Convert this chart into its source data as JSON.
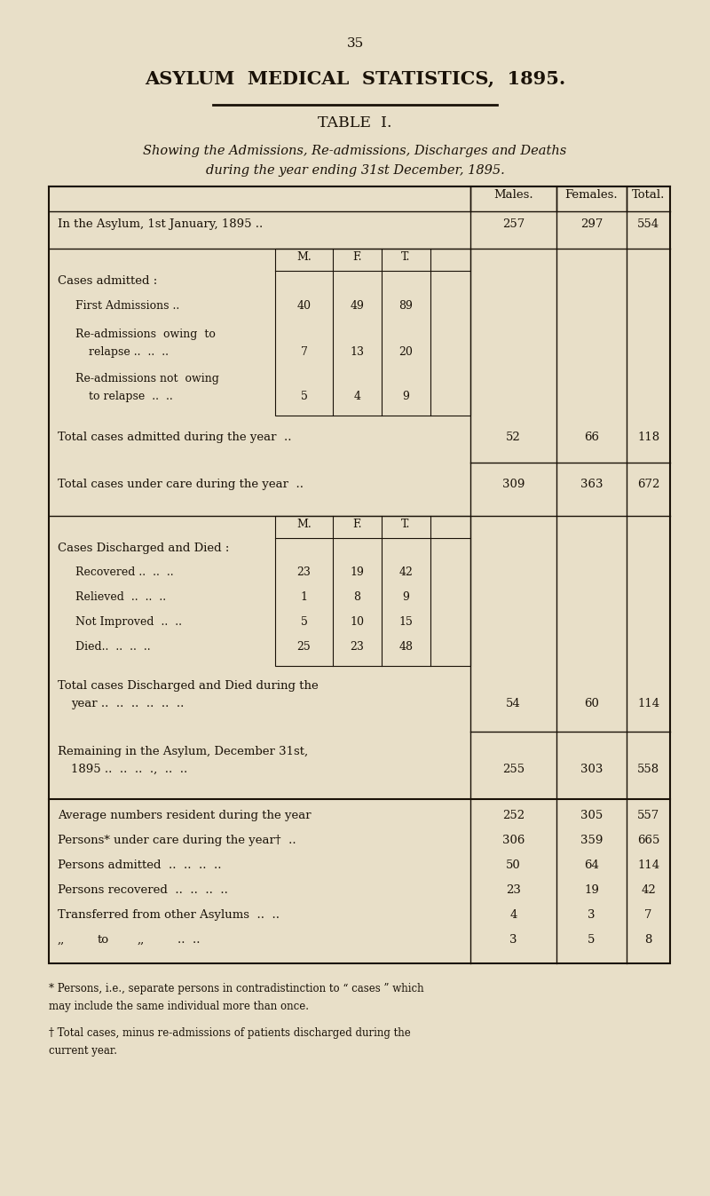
{
  "bg_color": "#e8dfc8",
  "text_color": "#1a1208",
  "page_number": "35",
  "title": "ASYLUM  MEDICAL  STATISTICS,  1895.",
  "table_title": "TABLE  I.",
  "subtitle1": "Showing the Admissions, Re-admissions, Discharges and Deaths",
  "subtitle2": "during the year ending 31st December, 1895.",
  "col_headers": [
    "Males.",
    "Females.",
    "Total."
  ],
  "mft": [
    "M.",
    "F.",
    "T."
  ],
  "in_asylum": [
    "In the Asylum, 1st January, 1895 ..",
    "257",
    "297",
    "554"
  ],
  "cases_admitted_header": "Cases admitted :",
  "first_admissions": [
    "First Admissions ..",
    "40",
    "49",
    "89"
  ],
  "readm_relapse1": "Re-admissions  owing  to",
  "readm_relapse2": "relapse ..  ..  ..",
  "readm_relapse_vals": [
    "7",
    "13",
    "20"
  ],
  "readm_not1": "Re-admissions not  owing",
  "readm_not2": "to relapse  ..  ..",
  "readm_not_vals": [
    "5",
    "4",
    "9"
  ],
  "total_admitted": [
    "Total cases admitted during the year  ..",
    "52",
    "66",
    "118"
  ],
  "total_under_care": [
    "Total cases under care during the year  ..",
    "309",
    "363",
    "672"
  ],
  "discharged_header": "Cases Discharged and Died :",
  "recovered": [
    "Recovered ..  ..  ..",
    "23",
    "19",
    "42"
  ],
  "relieved": [
    "Relieved  ..  ..  ..",
    "1",
    "8",
    "9"
  ],
  "not_improved": [
    "Not Improved  ..  ..",
    "5",
    "10",
    "15"
  ],
  "died": [
    "Died..  ..  ..  ..",
    "25",
    "23",
    "48"
  ],
  "total_disch": [
    "Total cases Discharged and Died during the",
    "year ..  ..  ..  ..  ..  ..",
    "54",
    "60",
    "114"
  ],
  "remaining": [
    "Remaining in the Asylum, December 31st,",
    "1895 ..  ..  ..  .,  ..  ..",
    "255",
    "303",
    "558"
  ],
  "avg_resident": [
    "Average numbers resident during the year",
    "252",
    "305",
    "557"
  ],
  "persons_care": [
    "Persons* under care during the year†  ..",
    "306",
    "359",
    "665"
  ],
  "persons_admitted": [
    "Persons admitted  ..  ..  ..  ..",
    "50",
    "64",
    "114"
  ],
  "persons_recovered": [
    "Persons recovered  ..  ..  ..  ..",
    "23",
    "19",
    "42"
  ],
  "transferred_from": [
    "Transferred from other Asylums  ..  ..",
    "4",
    "3",
    "7"
  ],
  "transferred_to_vals": [
    "3",
    "5",
    "8"
  ],
  "fn1a": "* Persons, i.e., separate persons in contradistinction to “ cases ” which",
  "fn1b": "may include the same individual more than once.",
  "fn2a": "† Total cases, minus re-admissions of patients discharged during the",
  "fn2b": "current year."
}
